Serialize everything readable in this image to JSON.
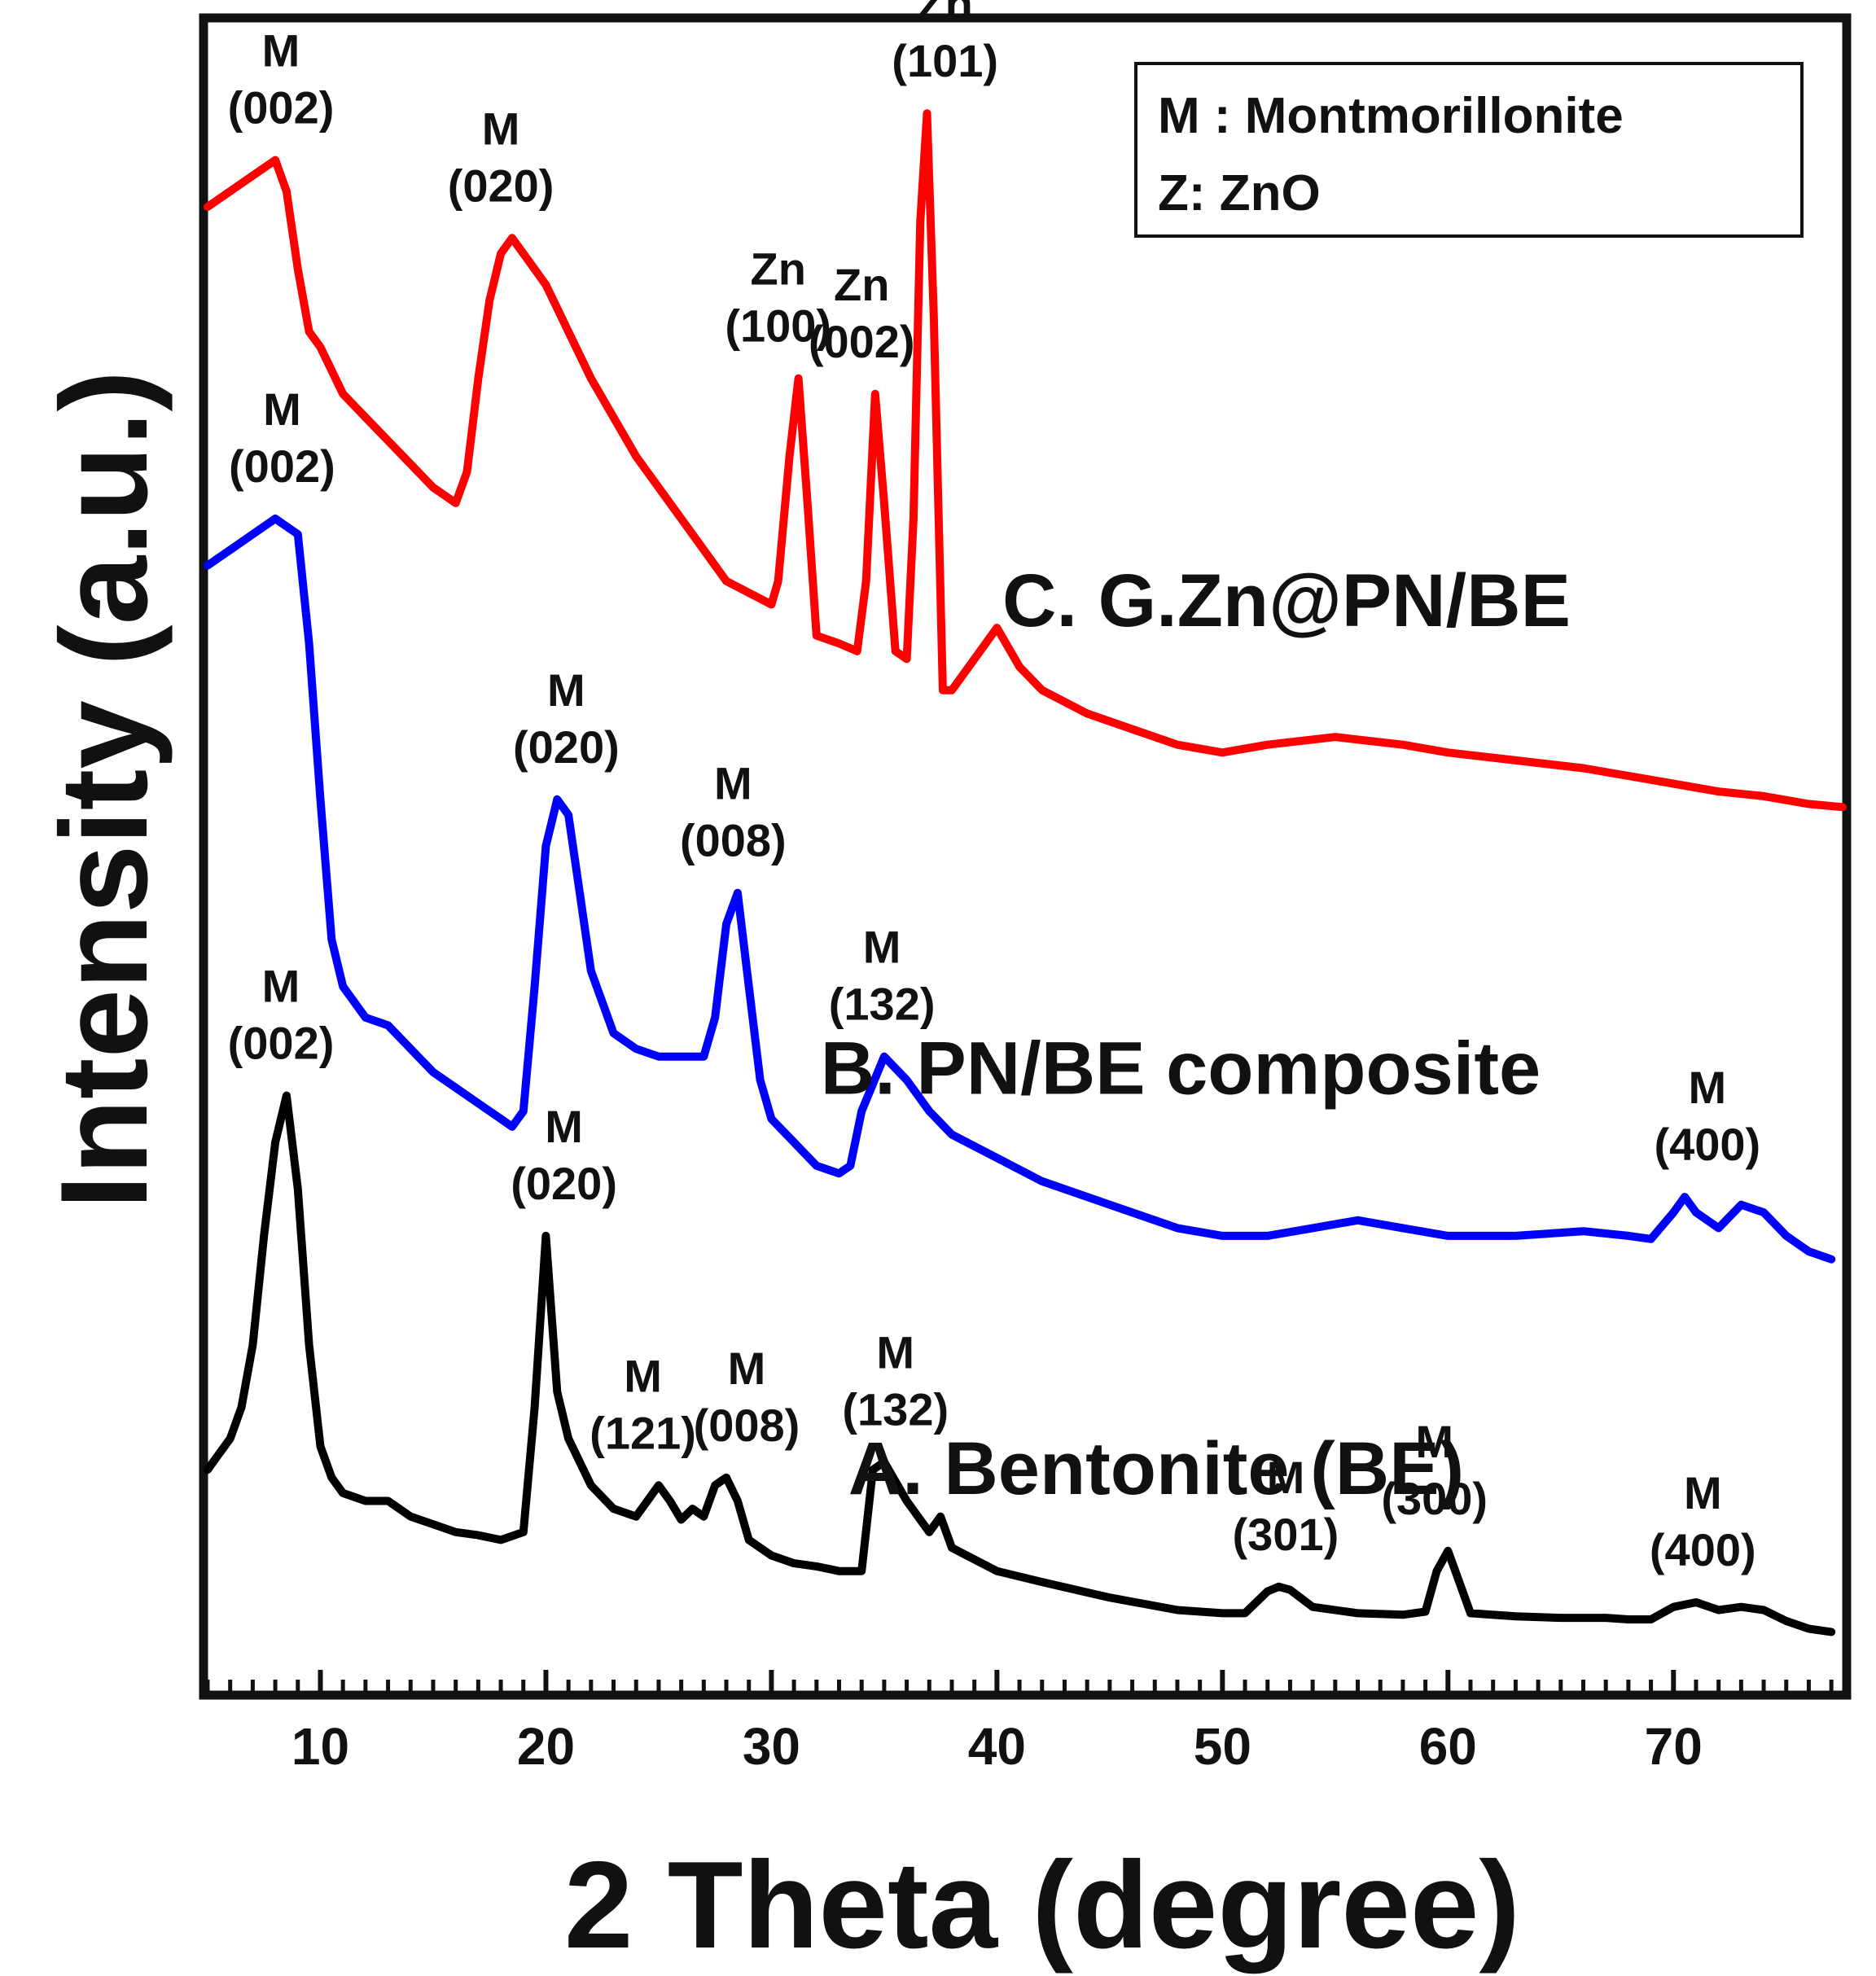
{
  "chart_data": {
    "type": "line",
    "xlabel": "2 Theta (degree)",
    "ylabel": "Intensity (a.u.)",
    "xlim": [
      5,
      77.5
    ],
    "ylim": [
      0,
      100
    ],
    "x_ticks": [
      10,
      20,
      30,
      40,
      50,
      60,
      70
    ],
    "legend": {
      "position": "top-right",
      "entries": [
        "M : Montmorillonite",
        "Z: ZnO"
      ]
    },
    "series": [
      {
        "name": "A. Bentonite (BE)",
        "color": "#000000",
        "x": [
          5,
          5.5,
          6,
          6.5,
          7,
          7.5,
          8,
          8.5,
          9,
          9.5,
          10,
          10.5,
          11,
          12,
          13,
          14,
          15,
          16,
          17,
          18,
          19,
          19.5,
          20,
          20.5,
          21,
          22,
          23,
          24,
          25,
          25.5,
          26,
          26.5,
          27,
          27.5,
          28,
          28.5,
          29,
          30,
          31,
          32,
          33,
          34,
          34.5,
          35,
          36,
          37,
          37.5,
          38,
          40,
          42,
          45,
          48,
          50,
          51,
          52,
          52.5,
          53,
          54,
          56,
          58,
          59,
          59.5,
          60,
          60.5,
          61,
          63,
          65,
          67,
          68,
          69,
          70,
          71,
          72,
          73,
          74,
          75,
          76,
          77
        ],
        "y": [
          12,
          13,
          14,
          16,
          20,
          27,
          33,
          36,
          30,
          20,
          13.5,
          11.5,
          10.5,
          10,
          10,
          9,
          8.5,
          8,
          7.8,
          7.5,
          8,
          16,
          27,
          17,
          14,
          11,
          9.5,
          9,
          11,
          10,
          8.8,
          9.5,
          9,
          11,
          11.5,
          10,
          7.5,
          6.5,
          6,
          5.8,
          5.5,
          5.5,
          12,
          12.5,
          10,
          8,
          9,
          7,
          5.5,
          4.8,
          3.8,
          3,
          2.8,
          2.8,
          4.2,
          4.5,
          4.3,
          3.2,
          2.8,
          2.7,
          2.9,
          5.5,
          6.8,
          4.8,
          2.8,
          2.6,
          2.5,
          2.5,
          2.4,
          2.4,
          3.2,
          3.5,
          3,
          3.2,
          3,
          2.3,
          1.8,
          1.6
        ]
      },
      {
        "name": "B. PN/BE composite",
        "color": "#0000ff",
        "x": [
          5,
          6,
          7,
          8,
          9,
          9.5,
          10,
          10.5,
          11,
          12,
          13,
          14,
          15,
          16,
          17,
          18,
          18.5,
          19,
          19.5,
          20,
          20.5,
          21,
          21.5,
          22,
          23,
          24,
          25,
          26,
          27,
          27.5,
          28,
          28.5,
          29,
          29.5,
          30,
          31,
          32,
          33,
          33.5,
          34,
          35,
          36,
          37,
          38,
          40,
          42,
          45,
          48,
          50,
          52,
          54,
          56,
          58,
          60,
          63,
          66,
          68,
          69,
          70,
          70.5,
          71,
          72,
          73,
          74,
          75,
          76,
          77
        ],
        "y": [
          70,
          71,
          72,
          73,
          72,
          65,
          55,
          46,
          43,
          41,
          40.5,
          39,
          37.5,
          36.5,
          35.5,
          34.5,
          34,
          35,
          43,
          52,
          55,
          54,
          49,
          44,
          40,
          39,
          38.5,
          38.5,
          38.5,
          41,
          47,
          49,
          43,
          37,
          34.5,
          33,
          31.5,
          31,
          31.5,
          35,
          38.5,
          37,
          35,
          33.5,
          32,
          30.5,
          29,
          27.5,
          27,
          27,
          27.5,
          28,
          27.5,
          27,
          27,
          27.3,
          27,
          26.8,
          28.5,
          29.5,
          28.5,
          27.5,
          29,
          28.5,
          27,
          26,
          25.5
        ]
      },
      {
        "name": "C. G.Zn@PN/BE",
        "color": "#ff0000",
        "x": [
          5,
          5.5,
          6,
          7,
          8,
          8.5,
          9,
          9.5,
          10,
          11,
          12,
          13,
          14,
          15,
          15.5,
          16,
          16.5,
          17,
          17.5,
          18,
          18.5,
          19,
          19.5,
          20,
          21,
          22,
          24,
          26,
          28,
          30,
          30.3,
          30.8,
          31.2,
          31.6,
          32,
          33,
          33.8,
          34.2,
          34.6,
          35,
          35.5,
          36,
          36.3,
          36.6,
          36.9,
          37.2,
          37.6,
          38,
          39,
          40,
          41,
          42,
          44,
          46,
          48,
          50,
          52,
          55,
          58,
          60,
          63,
          66,
          68,
          70,
          72,
          74,
          76,
          77.5
        ],
        "y": [
          93,
          93.5,
          94,
          95,
          96,
          94,
          89,
          85,
          84,
          81,
          79.5,
          78,
          76.5,
          75,
          74.5,
          74,
          76,
          82,
          87,
          90,
          91,
          90,
          89,
          88,
          85,
          82,
          77,
          73,
          69,
          67.5,
          69,
          77,
          82,
          74,
          65.5,
          65,
          64.5,
          69,
          81,
          74,
          64.5,
          64,
          73,
          92,
          99,
          86,
          62,
          62,
          64,
          66,
          63.5,
          62,
          60.5,
          59.5,
          58.5,
          58,
          58.5,
          59,
          58.5,
          58,
          57.5,
          57,
          56.5,
          56,
          55.5,
          55.2,
          54.7,
          54.5
        ]
      }
    ],
    "series_labels": [
      {
        "text": "A. Bentonite (BE)",
        "series": 0
      },
      {
        "text": "B. PN/BE composite",
        "series": 1
      },
      {
        "text": "C. G.Zn@PN/BE",
        "series": 2
      }
    ],
    "annotations": [
      {
        "series": "A",
        "x": 8.2,
        "lines": [
          "M",
          "(002)"
        ]
      },
      {
        "series": "A",
        "x": 20.8,
        "lines": [
          "M",
          "(020)"
        ]
      },
      {
        "series": "A",
        "x": 24.3,
        "lines": [
          "M",
          "(121)"
        ]
      },
      {
        "series": "A",
        "x": 28.9,
        "lines": [
          "M",
          "(008)"
        ]
      },
      {
        "series": "A",
        "x": 35.5,
        "lines": [
          "M",
          "(132)"
        ]
      },
      {
        "series": "A",
        "x": 52.8,
        "lines": [
          "M",
          "(301)"
        ]
      },
      {
        "series": "A",
        "x": 59.4,
        "lines": [
          "M",
          "(300)"
        ]
      },
      {
        "series": "A",
        "x": 71.3,
        "lines": [
          "M",
          "(400)"
        ]
      },
      {
        "series": "B",
        "x": 8.3,
        "lines": [
          "M",
          "(002)"
        ]
      },
      {
        "series": "B",
        "x": 20.9,
        "lines": [
          "M",
          "(020)"
        ]
      },
      {
        "series": "B",
        "x": 28.3,
        "lines": [
          "M",
          "(008)"
        ]
      },
      {
        "series": "B",
        "x": 34.9,
        "lines": [
          "M",
          "(132)"
        ]
      },
      {
        "series": "B",
        "x": 71.5,
        "lines": [
          "M",
          "(400)"
        ]
      },
      {
        "series": "C",
        "x": 8,
        "lines": [
          "M",
          "(002)"
        ]
      },
      {
        "series": "C",
        "x": 18,
        "lines": [
          "M",
          "(020)"
        ]
      },
      {
        "series": "C",
        "x": 30.3,
        "lines": [
          "Zn",
          "(100)"
        ]
      },
      {
        "series": "C",
        "x": 34,
        "lines": [
          "Zn",
          "(002)"
        ]
      },
      {
        "series": "C",
        "x": 37.7,
        "lines": [
          "Zn",
          "(101)"
        ]
      }
    ]
  }
}
